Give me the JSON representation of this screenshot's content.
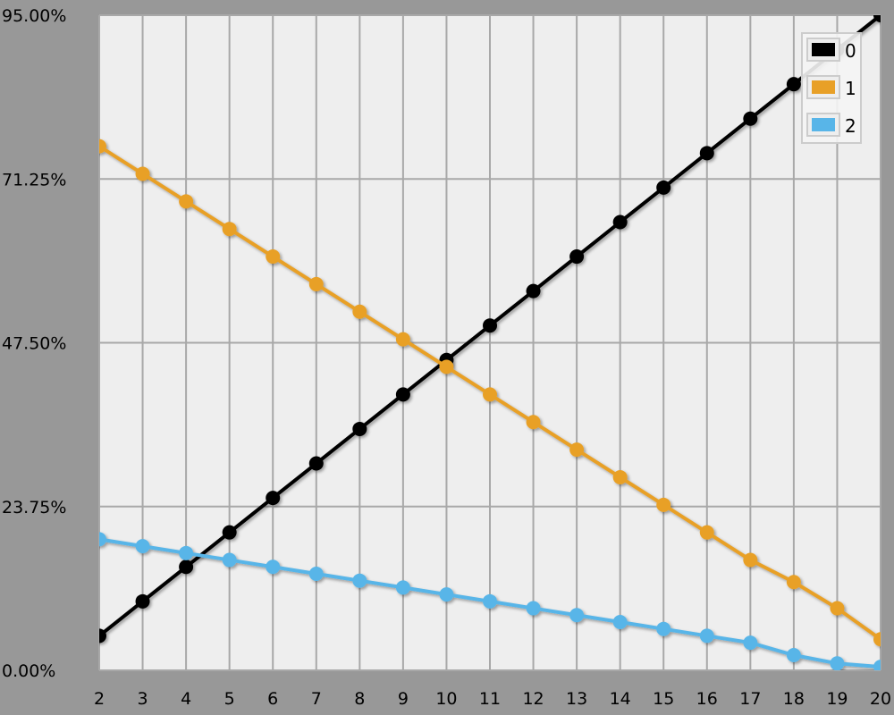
{
  "chart_data": {
    "type": "line",
    "title": "",
    "xlabel": "",
    "ylabel": "",
    "x": [
      2,
      3,
      4,
      5,
      6,
      7,
      8,
      9,
      10,
      11,
      12,
      13,
      14,
      15,
      16,
      17,
      18,
      19,
      20
    ],
    "xlim": [
      2,
      20
    ],
    "ylim": [
      0,
      95
    ],
    "y_ticks": [
      "0.00%",
      "23.75%",
      "47.50%",
      "71.25%",
      "95.00%"
    ],
    "y_tick_values": [
      0,
      23.75,
      47.5,
      71.25,
      95
    ],
    "x_ticks": [
      "2",
      "3",
      "4",
      "5",
      "6",
      "7",
      "8",
      "9",
      "10",
      "11",
      "12",
      "13",
      "14",
      "15",
      "16",
      "17",
      "18",
      "19",
      "20"
    ],
    "grid": true,
    "legend_position": "top-right",
    "series": [
      {
        "name": "0",
        "color": "#000000",
        "values": [
          5,
          10,
          15,
          20,
          25,
          30,
          35,
          40,
          45,
          50,
          55,
          60,
          65,
          70,
          75,
          80,
          85,
          90,
          95
        ]
      },
      {
        "name": "1",
        "color": "#E8A027",
        "values": [
          76,
          72,
          68,
          64,
          60,
          56,
          52,
          48,
          44,
          40,
          36,
          32,
          28,
          24,
          20,
          16,
          12.8,
          9,
          4.5
        ]
      },
      {
        "name": "2",
        "color": "#58B5E8",
        "values": [
          19,
          18,
          17,
          16,
          15,
          14,
          13,
          12,
          11,
          10,
          9,
          8,
          7,
          6,
          5,
          4,
          2.2,
          1,
          0.5
        ]
      }
    ]
  }
}
